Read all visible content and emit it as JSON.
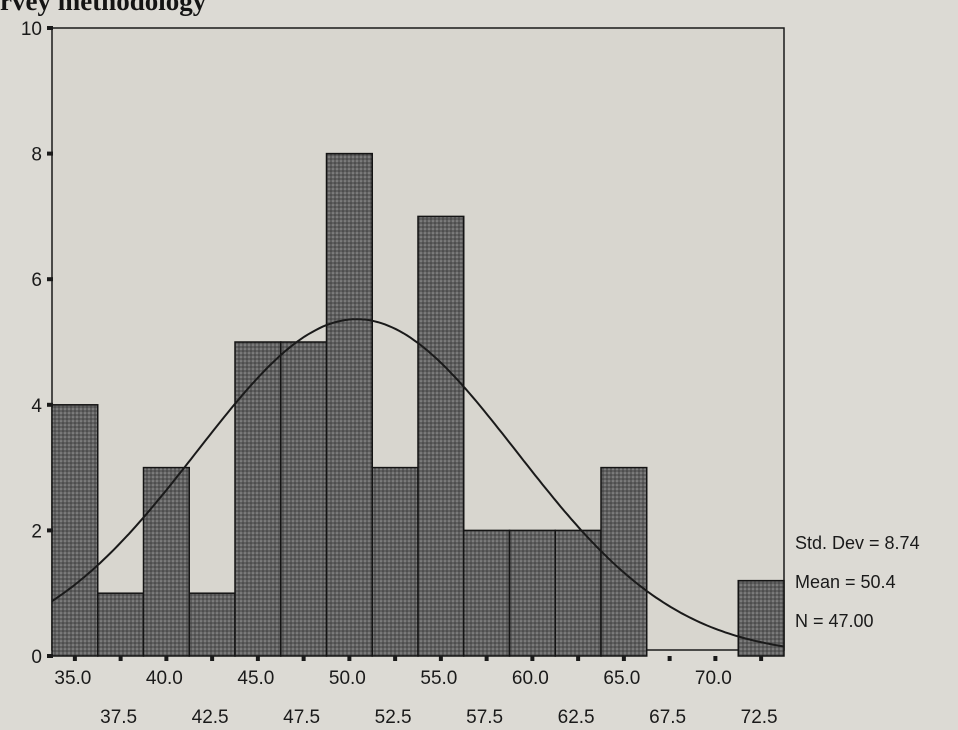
{
  "page": {
    "title": "rvey methodology"
  },
  "chart_data": {
    "type": "bar",
    "subtype": "histogram-with-normal-curve",
    "title": "",
    "xlabel": "",
    "ylabel": "",
    "bin_width": 2.5,
    "bin_centers": [
      35.0,
      37.5,
      40.0,
      42.5,
      45.0,
      47.5,
      50.0,
      52.5,
      55.0,
      57.5,
      60.0,
      62.5,
      65.0,
      67.5,
      70.0,
      72.5
    ],
    "values": [
      4,
      1,
      3,
      1,
      5,
      5,
      8,
      3,
      7,
      2,
      2,
      2,
      3,
      0,
      0,
      1.2
    ],
    "xlim": [
      33.75,
      73.75
    ],
    "ylim": [
      0,
      10
    ],
    "y_ticks": [
      "0",
      "2",
      "4",
      "6",
      "8",
      "10"
    ],
    "x_ticks_upper": [
      "35.0",
      "40.0",
      "45.0",
      "50.0",
      "55.0",
      "60.0",
      "65.0",
      "70.0"
    ],
    "x_ticks_lower": [
      "37.5",
      "42.5",
      "47.5",
      "52.5",
      "57.5",
      "62.5",
      "67.5",
      "72.5"
    ],
    "normal_curve": {
      "mean": 50.4,
      "std_dev": 8.74,
      "n": 47
    },
    "stats": [
      "Std. Dev = 8.74",
      "Mean = 50.4",
      "N = 47.00"
    ],
    "grid": false,
    "legend": "right",
    "colors": {
      "bar_fill": "#5f5f5f",
      "bar_stroke": "#141414",
      "curve": "#1a1a1a"
    }
  }
}
